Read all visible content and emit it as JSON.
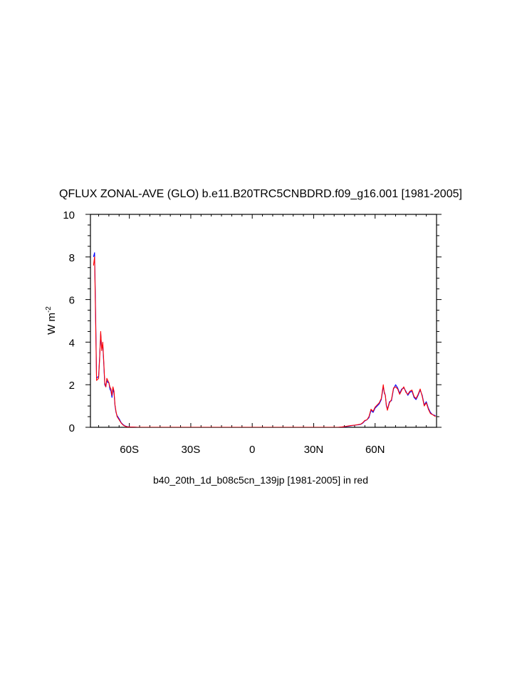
{
  "chart_data": {
    "type": "line",
    "title": "QFLUX ZONAL-AVE (GLO) b.e11.B20TRC5CNBDRD.f09_g16.001 [1981-2005]",
    "ylabel": "W m",
    "ylabel_exponent": "-2",
    "xlabel": "b40_20th_1d_b08c5cn_139jp [1981-2005] in red",
    "xlim": [
      -79,
      90
    ],
    "ylim": [
      0,
      10
    ],
    "x_ticks": [
      {
        "value": -60,
        "label": "60S"
      },
      {
        "value": -30,
        "label": "30S"
      },
      {
        "value": 0,
        "label": "0"
      },
      {
        "value": 30,
        "label": "30N"
      },
      {
        "value": 60,
        "label": "60N"
      }
    ],
    "y_ticks": [
      {
        "value": 0,
        "label": "0"
      },
      {
        "value": 2,
        "label": "2"
      },
      {
        "value": 4,
        "label": "4"
      },
      {
        "value": 6,
        "label": "6"
      },
      {
        "value": 8,
        "label": "8"
      },
      {
        "value": 10,
        "label": "10"
      }
    ],
    "x_minor_step": 5,
    "y_minor_step": 0.5,
    "series": [
      {
        "color": "#0000ff",
        "x": [
          -77.5,
          -77.0,
          -76.5,
          -76.0,
          -75.0,
          -74.5,
          -74.0,
          -73.5,
          -73.0,
          -72.5,
          -72.0,
          -71.5,
          -71.0,
          -70.5,
          -70.0,
          -69.5,
          -69.0,
          -68.5,
          -68.0,
          -67.5,
          -67.0,
          -66.5,
          -66.0,
          -65.0,
          -64.0,
          -63.0,
          -62.0,
          -61.0,
          -60.0,
          -58.0,
          -56.0,
          -53.0,
          -50.0,
          -40.0,
          -30.0,
          -20.0,
          -10.0,
          0.0,
          10.0,
          20.0,
          30.0,
          38.0,
          40.0,
          42.0,
          44.0,
          46.0,
          48.0,
          50.0,
          52.0,
          53.0,
          54.0,
          55.0,
          56.0,
          57.0,
          58.0,
          59.0,
          60.0,
          61.0,
          62.0,
          63.0,
          64.0,
          64.5,
          65.0,
          65.5,
          66.0,
          67.0,
          68.0,
          69.0,
          70.0,
          71.0,
          72.0,
          73.0,
          74.0,
          75.0,
          76.0,
          77.0,
          78.0,
          79.0,
          80.0,
          81.0,
          82.0,
          83.0,
          84.0,
          85.0,
          86.0,
          87.0,
          88.0,
          89.5
        ],
        "y": [
          8.0,
          8.2,
          5.5,
          2.3,
          2.4,
          3.3,
          4.4,
          3.7,
          3.9,
          3.0,
          2.0,
          1.9,
          2.2,
          2.1,
          2.1,
          1.8,
          1.7,
          1.4,
          1.8,
          1.6,
          1.0,
          0.7,
          0.55,
          0.4,
          0.22,
          0.12,
          0.06,
          0.03,
          0.02,
          0.01,
          0.0,
          0.0,
          0.0,
          0.0,
          0.0,
          0.0,
          0.0,
          0.0,
          0.0,
          0.0,
          0.0,
          0.0,
          0.0,
          0.0,
          0.02,
          0.04,
          0.07,
          0.1,
          0.12,
          0.14,
          0.2,
          0.3,
          0.35,
          0.45,
          0.8,
          0.7,
          0.9,
          1.0,
          1.1,
          1.3,
          1.9,
          1.65,
          1.5,
          1.0,
          0.85,
          1.2,
          1.25,
          1.8,
          2.0,
          1.85,
          1.6,
          1.8,
          1.85,
          1.7,
          1.5,
          1.65,
          1.7,
          1.4,
          1.3,
          1.5,
          1.75,
          1.5,
          1.05,
          1.2,
          0.9,
          0.7,
          0.6,
          0.55
        ]
      },
      {
        "color": "#ff0000",
        "x": [
          -77.5,
          -77.0,
          -76.5,
          -76.0,
          -75.0,
          -74.5,
          -74.0,
          -73.5,
          -73.0,
          -72.5,
          -72.0,
          -71.5,
          -71.0,
          -70.5,
          -70.0,
          -69.5,
          -69.0,
          -68.5,
          -68.0,
          -67.5,
          -67.0,
          -66.5,
          -66.0,
          -65.0,
          -64.0,
          -63.0,
          -62.0,
          -61.0,
          -60.0,
          -58.0,
          -56.0,
          -53.0,
          -50.0,
          -40.0,
          -30.0,
          -20.0,
          -10.0,
          0.0,
          10.0,
          20.0,
          30.0,
          38.0,
          40.0,
          42.0,
          44.0,
          46.0,
          48.0,
          50.0,
          52.0,
          53.0,
          54.0,
          55.0,
          56.0,
          57.0,
          58.0,
          59.0,
          60.0,
          61.0,
          62.0,
          63.0,
          64.0,
          64.5,
          65.0,
          65.5,
          66.0,
          67.0,
          68.0,
          69.0,
          70.0,
          71.0,
          72.0,
          73.0,
          74.0,
          75.0,
          76.0,
          77.0,
          78.0,
          79.0,
          80.0,
          81.0,
          82.0,
          83.0,
          84.0,
          85.0,
          86.0,
          87.0,
          88.0,
          89.5
        ],
        "y": [
          7.6,
          8.0,
          5.2,
          2.2,
          2.3,
          3.2,
          4.5,
          3.6,
          4.0,
          3.1,
          2.1,
          1.9,
          2.3,
          2.2,
          2.1,
          1.9,
          1.8,
          1.5,
          1.9,
          1.7,
          1.05,
          0.75,
          0.5,
          0.35,
          0.2,
          0.1,
          0.05,
          0.02,
          0.01,
          0.01,
          0.0,
          0.0,
          0.0,
          0.0,
          0.0,
          0.0,
          0.0,
          0.0,
          0.0,
          0.0,
          0.0,
          0.0,
          0.0,
          0.0,
          0.02,
          0.05,
          0.08,
          0.1,
          0.13,
          0.15,
          0.22,
          0.32,
          0.35,
          0.5,
          0.85,
          0.75,
          0.95,
          1.05,
          1.15,
          1.35,
          2.0,
          1.6,
          1.5,
          1.05,
          0.8,
          1.15,
          1.3,
          1.85,
          1.9,
          1.8,
          1.55,
          1.75,
          1.9,
          1.65,
          1.55,
          1.7,
          1.75,
          1.45,
          1.35,
          1.55,
          1.8,
          1.45,
          1.0,
          1.15,
          0.85,
          0.65,
          0.6,
          0.5
        ]
      }
    ]
  }
}
